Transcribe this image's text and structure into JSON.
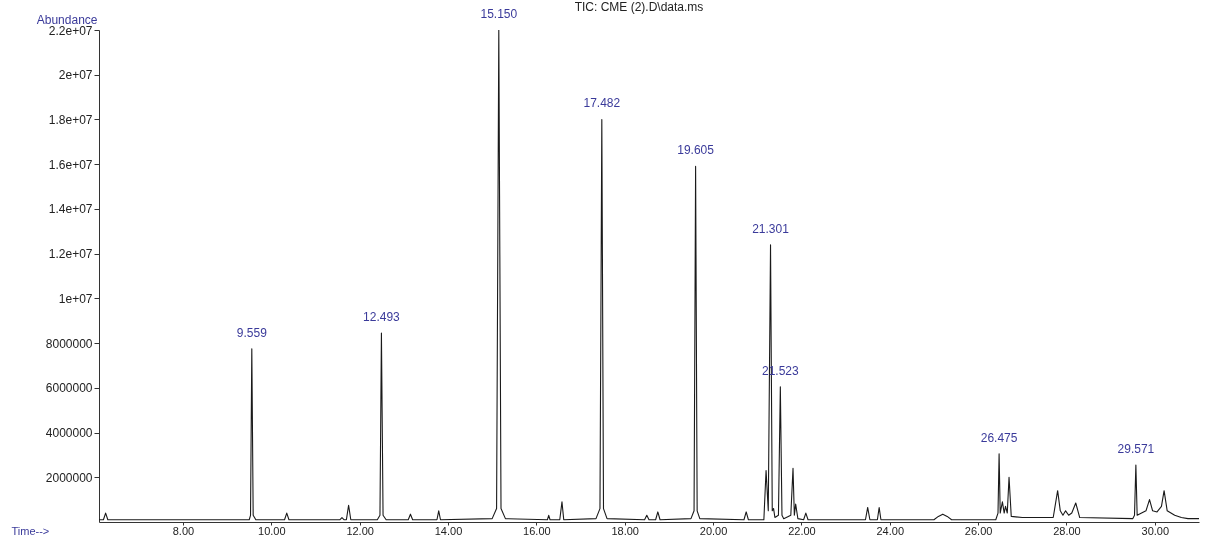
{
  "chart_data": {
    "type": "line",
    "title": "TIC: CME (2).D\\data.ms",
    "xlabel": "Time-->",
    "ylabel": "Abundance",
    "xlim": [
      6.1,
      31.0
    ],
    "ylim": [
      0,
      22000000
    ],
    "xticks": [
      {
        "value": 8,
        "label": "8.00"
      },
      {
        "value": 10,
        "label": "10.00"
      },
      {
        "value": 12,
        "label": "12.00"
      },
      {
        "value": 14,
        "label": "14.00"
      },
      {
        "value": 16,
        "label": "16.00"
      },
      {
        "value": 18,
        "label": "18.00"
      },
      {
        "value": 20,
        "label": "20.00"
      },
      {
        "value": 22,
        "label": "22.00"
      },
      {
        "value": 24,
        "label": "24.00"
      },
      {
        "value": 26,
        "label": "26.00"
      },
      {
        "value": 28,
        "label": "28.00"
      },
      {
        "value": 30,
        "label": "30.00"
      }
    ],
    "yticks": [
      2000000,
      4000000,
      6000000,
      8000000,
      {
        "value": 10000000,
        "label": "1e+07"
      },
      {
        "value": 12000000,
        "label": "1.2e+07"
      },
      {
        "value": 14000000,
        "label": "1.4e+07"
      },
      {
        "value": 16000000,
        "label": "1.6e+07"
      },
      {
        "value": 18000000,
        "label": "1.8e+07"
      },
      {
        "value": 20000000,
        "label": "2e+07"
      },
      {
        "value": 22000000,
        "label": "2.2e+07"
      }
    ],
    "grid": false,
    "marker": "none",
    "line_style": "solid",
    "series": [
      {
        "color": "#1a1a1a",
        "x": [
          6.1,
          6.2,
          6.25,
          6.3,
          8.0,
          9.5,
          9.53,
          9.559,
          9.59,
          9.65,
          10.3,
          10.35,
          10.4,
          11.55,
          11.6,
          11.65,
          11.7,
          11.75,
          11.8,
          12.4,
          12.46,
          12.493,
          12.53,
          12.6,
          13.1,
          13.15,
          13.2,
          13.75,
          13.79,
          13.83,
          15.0,
          15.1,
          15.15,
          15.2,
          15.3,
          16.25,
          16.28,
          16.31,
          16.53,
          16.58,
          16.62,
          17.35,
          17.44,
          17.482,
          17.52,
          17.6,
          18.45,
          18.5,
          18.55,
          18.7,
          18.75,
          18.8,
          19.5,
          19.57,
          19.605,
          19.64,
          19.7,
          20.7,
          20.75,
          20.8,
          21.15,
          21.2,
          21.25,
          21.301,
          21.34,
          21.37,
          21.4,
          21.48,
          21.523,
          21.56,
          21.6,
          21.76,
          21.81,
          21.84,
          21.87,
          21.92,
          22.05,
          22.1,
          22.15,
          23.45,
          23.5,
          23.55,
          23.72,
          23.76,
          23.8,
          25.0,
          25.1,
          25.2,
          25.3,
          25.4,
          26.4,
          26.45,
          26.475,
          26.5,
          26.55,
          26.59,
          26.62,
          26.66,
          26.7,
          26.75,
          27.0,
          27.7,
          27.8,
          27.86,
          27.92,
          27.98,
          28.05,
          28.12,
          28.21,
          28.3,
          29.5,
          29.54,
          29.571,
          29.6,
          29.7,
          29.8,
          29.88,
          29.95,
          30.05,
          30.15,
          30.21,
          30.28,
          30.45,
          30.6,
          30.75,
          31.0
        ],
        "values": [
          100000,
          100000,
          400000,
          100000,
          100000,
          100000,
          300000,
          7750000,
          300000,
          100000,
          100000,
          400000,
          100000,
          100000,
          200000,
          100000,
          100000,
          750000,
          100000,
          100000,
          300000,
          8450000,
          300000,
          100000,
          100000,
          350000,
          100000,
          100000,
          500000,
          100000,
          150000,
          600000,
          22000000,
          600000,
          150000,
          100000,
          300000,
          100000,
          100000,
          900000,
          100000,
          150000,
          600000,
          18000000,
          600000,
          150000,
          100000,
          300000,
          100000,
          100000,
          450000,
          100000,
          150000,
          500000,
          15900000,
          500000,
          150000,
          100000,
          450000,
          100000,
          100000,
          2300000,
          500000,
          12400000,
          500000,
          600000,
          200000,
          300000,
          6050000,
          300000,
          150000,
          300000,
          2400000,
          300000,
          800000,
          150000,
          100000,
          400000,
          100000,
          100000,
          650000,
          100000,
          100000,
          650000,
          100000,
          100000,
          250000,
          350000,
          250000,
          100000,
          100000,
          400000,
          3050000,
          400000,
          900000,
          400000,
          700000,
          400000,
          2000000,
          250000,
          200000,
          200000,
          1400000,
          500000,
          300000,
          500000,
          300000,
          400000,
          850000,
          200000,
          150000,
          300000,
          2550000,
          300000,
          400000,
          500000,
          1000000,
          500000,
          450000,
          700000,
          1400000,
          500000,
          300000,
          200000,
          150000,
          150000
        ]
      }
    ],
    "annotations": [
      {
        "text": "9.559",
        "x": 9.559,
        "y": 7750000
      },
      {
        "text": "12.493",
        "x": 12.493,
        "y": 8450000
      },
      {
        "text": "15.150",
        "x": 15.15,
        "y": 22000000
      },
      {
        "text": "17.482",
        "x": 17.482,
        "y": 18000000
      },
      {
        "text": "19.605",
        "x": 19.605,
        "y": 15900000
      },
      {
        "text": "21.301",
        "x": 21.301,
        "y": 12400000
      },
      {
        "text": "21.523",
        "x": 21.523,
        "y": 6050000
      },
      {
        "text": "26.475",
        "x": 26.475,
        "y": 3050000
      },
      {
        "text": "29.571",
        "x": 29.571,
        "y": 2550000
      }
    ]
  }
}
